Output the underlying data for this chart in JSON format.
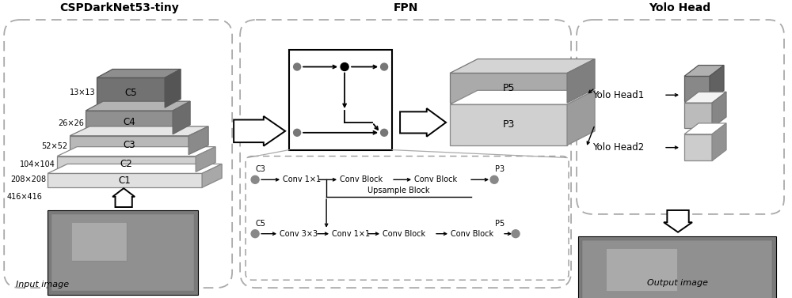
{
  "bg_color": "#ffffff",
  "section_titles": {
    "csp": "CSPDarkNet53-tiny",
    "fpn": "FPN",
    "yolo": "Yolo Head"
  },
  "pyramid_layers": [
    {
      "name": "C1",
      "size": "208×208",
      "color": "#e8e8e8",
      "edge": "#888888"
    },
    {
      "name": "C2",
      "size": "104×104",
      "color": "#d4d4d4",
      "edge": "#888888"
    },
    {
      "name": "C3",
      "size": "52×52",
      "color": "#c0c0c0",
      "edge": "#888888"
    },
    {
      "name": "C4",
      "size": "26×26",
      "color": "#909090",
      "edge": "#666666"
    },
    {
      "name": "C5",
      "size": "13×13",
      "color": "#787878",
      "edge": "#555555"
    }
  ],
  "extra_size": "416×416",
  "fpn_labels": {
    "p5": "P5",
    "p3": "P3"
  },
  "fpn_detail": {
    "c3_label": "C3",
    "c3_ops": [
      "Conv 1×1",
      "Conv Block",
      "Conv Block"
    ],
    "p3_label": "P3",
    "upsample": "Upsample Block",
    "c5_label": "C5",
    "c5_ops": [
      "Conv 3×3",
      "Conv 1×1",
      "Conv Block",
      "Conv Block"
    ],
    "p5_label": "P5"
  },
  "yolo_labels": [
    "Yolo Head1",
    "Yolo Head2"
  ],
  "input_label": "Input image",
  "output_label": "Output image",
  "colors": {
    "white": "#ffffff",
    "black": "#000000",
    "dark_box_fill": "#777777",
    "dash_color": "#aaaaaa",
    "p5_color": "#aaaaaa",
    "p3_color": "#d8d8d8",
    "p5_side": "#999999",
    "p3_side": "#c0c0c0",
    "img_gray": "#888888",
    "dot_gray": "#888888",
    "yh1_dark": "#888888",
    "yh1_light": "#bbbbbb",
    "yh2_light": "#cccccc"
  }
}
